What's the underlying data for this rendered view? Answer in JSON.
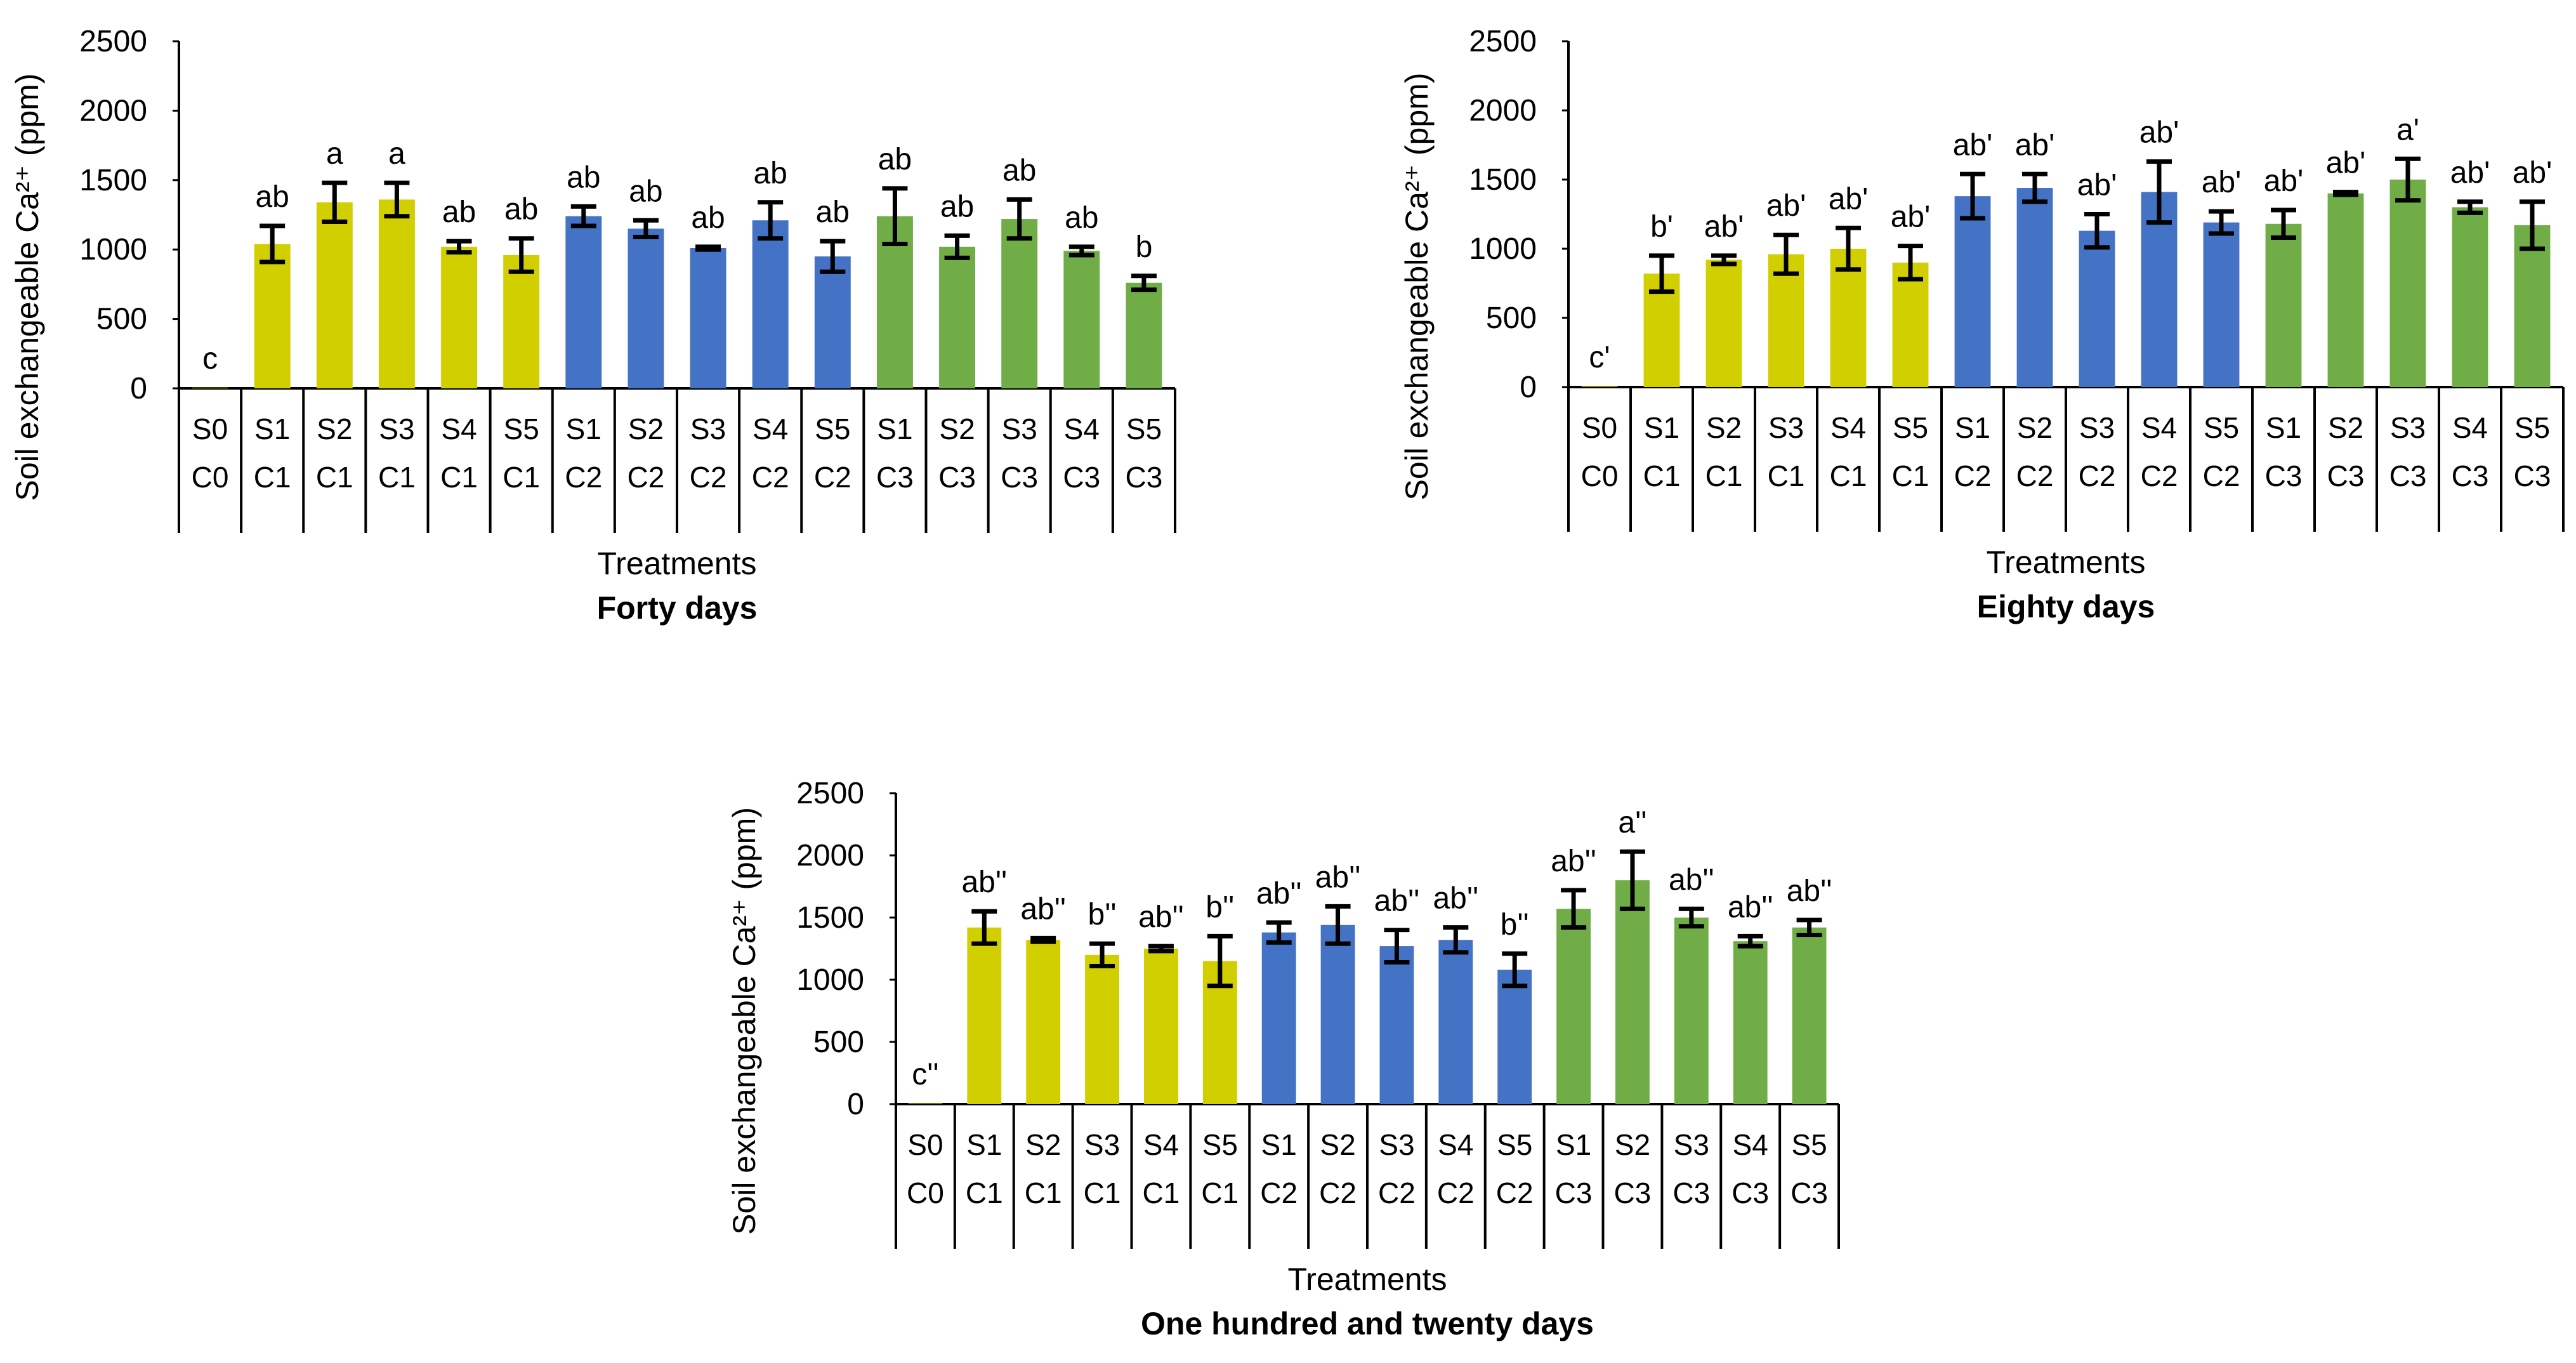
{
  "colors": {
    "C0": "#d2cf00",
    "C1": "#d2cf00",
    "C2": "#4472c4",
    "C3": "#70ad47",
    "axis": "#000000",
    "error_bar": "#000000"
  },
  "chart_data": [
    {
      "type": "bar",
      "title": "Forty days",
      "xlabel": "Treatments",
      "ylabel": "Soil exchangeable Ca²⁺ (ppm)",
      "ylim": [
        0,
        2500
      ],
      "yticks": [
        "0",
        "500",
        "1000",
        "1500",
        "2000",
        "2500"
      ],
      "grid": false,
      "categories": [
        [
          "S0",
          "C0"
        ],
        [
          "S1",
          "C1"
        ],
        [
          "S2",
          "C1"
        ],
        [
          "S3",
          "C1"
        ],
        [
          "S4",
          "C1"
        ],
        [
          "S5",
          "C1"
        ],
        [
          "S1",
          "C2"
        ],
        [
          "S2",
          "C2"
        ],
        [
          "S3",
          "C2"
        ],
        [
          "S4",
          "C2"
        ],
        [
          "S5",
          "C2"
        ],
        [
          "S1",
          "C3"
        ],
        [
          "S2",
          "C3"
        ],
        [
          "S3",
          "C3"
        ],
        [
          "S4",
          "C3"
        ],
        [
          "S5",
          "C3"
        ]
      ],
      "values": [
        5,
        1040,
        1340,
        1360,
        1020,
        960,
        1240,
        1150,
        1010,
        1210,
        950,
        1240,
        1020,
        1220,
        990,
        760
      ],
      "errors": [
        0,
        130,
        140,
        120,
        40,
        120,
        70,
        60,
        10,
        130,
        110,
        200,
        80,
        140,
        30,
        50
      ],
      "labels": [
        "c",
        "ab",
        "a",
        "a",
        "ab",
        "ab",
        "ab",
        "ab",
        "ab",
        "ab",
        "ab",
        "ab",
        "ab",
        "ab",
        "ab",
        "b"
      ]
    },
    {
      "type": "bar",
      "title": "Eighty days",
      "xlabel": "Treatments",
      "ylabel": "Soil exchangeable Ca²⁺ (ppm)",
      "ylim": [
        0,
        2500
      ],
      "yticks": [
        "0",
        "500",
        "1000",
        "1500",
        "2000",
        "2500"
      ],
      "grid": false,
      "categories": [
        [
          "S0",
          "C0"
        ],
        [
          "S1",
          "C1"
        ],
        [
          "S2",
          "C1"
        ],
        [
          "S3",
          "C1"
        ],
        [
          "S4",
          "C1"
        ],
        [
          "S5",
          "C1"
        ],
        [
          "S1",
          "C2"
        ],
        [
          "S2",
          "C2"
        ],
        [
          "S3",
          "C2"
        ],
        [
          "S4",
          "C2"
        ],
        [
          "S5",
          "C2"
        ],
        [
          "S1",
          "C3"
        ],
        [
          "S2",
          "C3"
        ],
        [
          "S3",
          "C3"
        ],
        [
          "S4",
          "C3"
        ],
        [
          "S5",
          "C3"
        ]
      ],
      "values": [
        5,
        820,
        920,
        960,
        1000,
        900,
        1380,
        1440,
        1130,
        1410,
        1190,
        1180,
        1400,
        1500,
        1300,
        1170
      ],
      "errors": [
        0,
        130,
        30,
        140,
        150,
        120,
        160,
        100,
        120,
        220,
        80,
        100,
        10,
        150,
        40,
        170
      ],
      "labels": [
        "c'",
        "b'",
        "ab'",
        "ab'",
        "ab'",
        "ab'",
        "ab'",
        "ab'",
        "ab'",
        "ab'",
        "ab'",
        "ab'",
        "ab'",
        "a'",
        "ab'",
        "ab'"
      ]
    },
    {
      "type": "bar",
      "title": "One hundred and twenty days",
      "xlabel": "Treatments",
      "ylabel": "Soil exchangeable Ca²⁺ (ppm)",
      "ylim": [
        0,
        2500
      ],
      "yticks": [
        "0",
        "500",
        "1000",
        "1500",
        "2000",
        "2500"
      ],
      "grid": false,
      "categories": [
        [
          "S0",
          "C0"
        ],
        [
          "S1",
          "C1"
        ],
        [
          "S2",
          "C1"
        ],
        [
          "S3",
          "C1"
        ],
        [
          "S4",
          "C1"
        ],
        [
          "S5",
          "C1"
        ],
        [
          "S1",
          "C2"
        ],
        [
          "S2",
          "C2"
        ],
        [
          "S3",
          "C2"
        ],
        [
          "S4",
          "C2"
        ],
        [
          "S5",
          "C2"
        ],
        [
          "S1",
          "C3"
        ],
        [
          "S2",
          "C3"
        ],
        [
          "S3",
          "C3"
        ],
        [
          "S4",
          "C3"
        ],
        [
          "S5",
          "C3"
        ]
      ],
      "values": [
        5,
        1420,
        1320,
        1200,
        1250,
        1150,
        1380,
        1440,
        1270,
        1320,
        1080,
        1570,
        1800,
        1500,
        1310,
        1420
      ],
      "errors": [
        0,
        130,
        15,
        90,
        20,
        200,
        80,
        150,
        130,
        100,
        130,
        150,
        230,
        70,
        40,
        60
      ],
      "labels": [
        "c''",
        "ab''",
        "ab''",
        "b''",
        "ab''",
        "b''",
        "ab''",
        "ab''",
        "ab''",
        "ab''",
        "b''",
        "ab''",
        "a''",
        "ab''",
        "ab''",
        "ab''"
      ]
    }
  ]
}
